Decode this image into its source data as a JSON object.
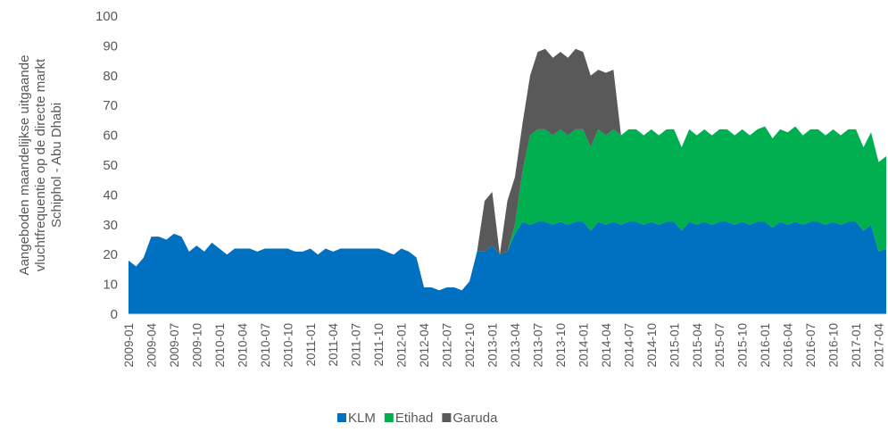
{
  "chart_data": {
    "type": "stacked_area",
    "y_label": [
      "Aangeboden maandelijkse uitgaande",
      "vluchtfrequentie op de directe markt",
      "Schiphol - Abu Dhabi"
    ],
    "categories": [
      "2009-01",
      null,
      null,
      "2009-04",
      null,
      null,
      "2009-07",
      null,
      null,
      "2009-10",
      null,
      null,
      "2010-01",
      null,
      null,
      "2010-04",
      null,
      null,
      "2010-07",
      null,
      null,
      "2010-10",
      null,
      null,
      "2011-01",
      null,
      null,
      "2011-04",
      null,
      null,
      "2011-07",
      null,
      null,
      "2011-10",
      null,
      null,
      "2012-01",
      null,
      null,
      "2012-04",
      null,
      null,
      "2012-07",
      null,
      null,
      "2012-10",
      null,
      null,
      "2013-01",
      null,
      null,
      "2013-04",
      null,
      null,
      "2013-07",
      null,
      null,
      "2013-10",
      null,
      null,
      "2014-01",
      null,
      null,
      "2014-04",
      null,
      null,
      "2014-07",
      null,
      null,
      "2014-10",
      null,
      null,
      "2015-01",
      null,
      null,
      "2015-04",
      null,
      null,
      "2015-07",
      null,
      null,
      "2015-10",
      null,
      null,
      "2016-01",
      null,
      null,
      "2016-04",
      null,
      null,
      "2016-07",
      null,
      null,
      "2016-10",
      null,
      null,
      "2017-01",
      null,
      null,
      "2017-04",
      null
    ],
    "series": [
      {
        "name": "KLM",
        "color": "#0070c0",
        "values": [
          18,
          16,
          19,
          26,
          26,
          25,
          27,
          26,
          21,
          23,
          21,
          24,
          22,
          20,
          22,
          22,
          22,
          21,
          22,
          22,
          22,
          22,
          21,
          21,
          22,
          20,
          22,
          21,
          22,
          22,
          22,
          22,
          22,
          22,
          21,
          20,
          22,
          21,
          19,
          9,
          9,
          8,
          9,
          9,
          8,
          11,
          21,
          21,
          23,
          20,
          21,
          27,
          31,
          30,
          31,
          31,
          30,
          31,
          30,
          31,
          31,
          28,
          31,
          30,
          31,
          30,
          31,
          31,
          30,
          31,
          30,
          31,
          31,
          28,
          31,
          30,
          31,
          30,
          31,
          31,
          30,
          31,
          30,
          31,
          31,
          29,
          31,
          30,
          31,
          30,
          31,
          31,
          30,
          31,
          30,
          31,
          31,
          28,
          30,
          21,
          22
        ]
      },
      {
        "name": "Etihad",
        "color": "#00b050",
        "values": [
          0,
          0,
          0,
          0,
          0,
          0,
          0,
          0,
          0,
          0,
          0,
          0,
          0,
          0,
          0,
          0,
          0,
          0,
          0,
          0,
          0,
          0,
          0,
          0,
          0,
          0,
          0,
          0,
          0,
          0,
          0,
          0,
          0,
          0,
          0,
          0,
          0,
          0,
          0,
          0,
          0,
          0,
          0,
          0,
          0,
          0,
          0,
          0,
          0,
          0,
          0,
          3,
          17,
          30,
          31,
          31,
          30,
          31,
          30,
          31,
          31,
          28,
          31,
          30,
          31,
          30,
          31,
          31,
          30,
          31,
          30,
          31,
          31,
          28,
          31,
          30,
          31,
          30,
          31,
          31,
          30,
          31,
          30,
          31,
          32,
          30,
          31,
          31,
          32,
          30,
          31,
          31,
          30,
          31,
          30,
          31,
          31,
          28,
          31,
          30,
          31
        ]
      },
      {
        "name": "Garuda",
        "color": "#595959",
        "values": [
          0,
          0,
          0,
          0,
          0,
          0,
          0,
          0,
          0,
          0,
          0,
          0,
          0,
          0,
          0,
          0,
          0,
          0,
          0,
          0,
          0,
          0,
          0,
          0,
          0,
          0,
          0,
          0,
          0,
          0,
          0,
          0,
          0,
          0,
          0,
          0,
          0,
          0,
          0,
          0,
          0,
          0,
          0,
          0,
          0,
          0,
          0,
          17,
          18,
          0,
          17,
          16,
          16,
          20,
          26,
          27,
          26,
          26,
          26,
          27,
          26,
          24,
          20,
          21,
          20,
          0,
          0,
          0,
          0,
          0,
          0,
          0,
          0,
          0,
          0,
          0,
          0,
          0,
          0,
          0,
          0,
          0,
          0,
          0,
          0,
          0,
          0,
          0,
          0,
          0,
          0,
          0,
          0,
          0,
          0,
          0,
          0,
          0,
          0,
          0,
          0
        ]
      }
    ],
    "ylim": [
      0,
      100
    ],
    "yticks": [
      0,
      10,
      20,
      30,
      40,
      50,
      60,
      70,
      80,
      90,
      100
    ],
    "legend": "bottom"
  }
}
